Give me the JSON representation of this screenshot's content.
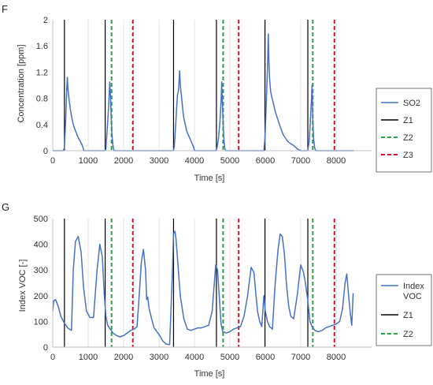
{
  "chart_data": [
    {
      "panel_label": "F",
      "type": "line",
      "xlabel": "Time [s]",
      "ylabel": "Concentration [ppm]",
      "xlim": [
        0,
        9000
      ],
      "ylim": [
        0,
        2
      ],
      "xticks": [
        0,
        1000,
        2000,
        3000,
        4000,
        5000,
        6000,
        7000,
        8000
      ],
      "yticks": [
        0,
        0.4,
        0.8,
        1.2,
        1.6,
        2
      ],
      "ytick_labels": [
        "0",
        "0.4",
        "0.8",
        "1.2",
        "1.6",
        "2"
      ],
      "grid": "vertical",
      "legend_position": "right",
      "series": [
        {
          "name": "SO2",
          "color": "#4472C4",
          "x": [
            0,
            300,
            330,
            360,
            390,
            410,
            430,
            460,
            500,
            540,
            580,
            620,
            660,
            700,
            740,
            780,
            820,
            850,
            880,
            1100,
            1460,
            1500,
            1540,
            1580,
            1610,
            1630,
            1650,
            1670,
            1700,
            1730,
            1760,
            2000,
            3000,
            3400,
            3430,
            3460,
            3490,
            3520,
            3550,
            3580,
            3610,
            3640,
            3670,
            3700,
            3740,
            3780,
            3820,
            3860,
            3900,
            3940,
            3980,
            4000,
            4300,
            4600,
            4640,
            4680,
            4720,
            4750,
            4770,
            4790,
            4810,
            4830,
            4850,
            4880,
            5000,
            5700,
            5960,
            5990,
            6020,
            6050,
            6070,
            6085,
            6100,
            6120,
            6150,
            6190,
            6230,
            6270,
            6310,
            6350,
            6400,
            6450,
            6500,
            6560,
            6620,
            6680,
            6740,
            6800,
            6860,
            6920,
            7000,
            7150,
            7200,
            7240,
            7270,
            7300,
            7320,
            7340,
            7360,
            7390,
            7420,
            8000,
            8500
          ],
          "y": [
            0,
            0,
            0.05,
            0.4,
            0.85,
            1.12,
            0.95,
            0.78,
            0.62,
            0.5,
            0.4,
            0.33,
            0.28,
            0.22,
            0.18,
            0.14,
            0.1,
            0.05,
            0,
            0,
            0,
            0.02,
            0.35,
            0.7,
            1.05,
            0.85,
            0.5,
            0.25,
            0.08,
            0,
            0,
            0,
            0,
            0,
            0.05,
            0.3,
            0.6,
            0.85,
            0.92,
            1.22,
            0.95,
            0.8,
            0.62,
            0.5,
            0.4,
            0.3,
            0.25,
            0.2,
            0.15,
            0.1,
            0.05,
            0,
            0,
            0,
            0.05,
            0.2,
            0.45,
            0.75,
            1.05,
            0.7,
            0.4,
            0.18,
            0.05,
            0,
            0,
            0,
            0,
            0.2,
            0.6,
            1.1,
            1.4,
            1.78,
            1.4,
            1.1,
            0.9,
            0.8,
            0.72,
            0.62,
            0.55,
            0.48,
            0.4,
            0.32,
            0.25,
            0.2,
            0.15,
            0.12,
            0.1,
            0.08,
            0.05,
            0.02,
            0,
            0,
            0,
            0.15,
            0.45,
            0.75,
            1.0,
            0.5,
            0.2,
            0.05,
            0,
            0,
            0
          ]
        }
      ],
      "vlines": [
        {
          "name": "Z1",
          "color": "#000000",
          "dash": "solid",
          "x": [
            330,
            1480,
            3410,
            4620,
            5990,
            7200
          ]
        },
        {
          "name": "Z2",
          "color": "#2E9E4A",
          "dash": "dashed",
          "x": [
            1660,
            4810,
            7340
          ]
        },
        {
          "name": "Z3",
          "color": "#D0112B",
          "dash": "dashed",
          "x": [
            2260,
            5250,
            7950
          ]
        }
      ],
      "legend": [
        {
          "name": "SO2",
          "color": "#4472C4",
          "dash": "solid"
        },
        {
          "name": "Z1",
          "color": "#000000",
          "dash": "solid"
        },
        {
          "name": "Z2",
          "color": "#2E9E4A",
          "dash": "dashed"
        },
        {
          "name": "Z3",
          "color": "#D0112B",
          "dash": "dashed"
        }
      ]
    },
    {
      "panel_label": "G",
      "type": "line",
      "xlabel": "Time [s]",
      "ylabel": "Index VOC [-]",
      "xlim": [
        0,
        9000
      ],
      "ylim": [
        0,
        500
      ],
      "xticks": [
        0,
        1000,
        2000,
        3000,
        4000,
        5000,
        6000,
        7000,
        8000
      ],
      "yticks": [
        0,
        100,
        200,
        300,
        400,
        500
      ],
      "ytick_labels": [
        "0",
        "100",
        "200",
        "300",
        "400",
        "500"
      ],
      "grid": "vertical",
      "legend_position": "right",
      "series": [
        {
          "name": "Index VOC",
          "color": "#4472C4",
          "x": [
            0,
            30,
            80,
            150,
            230,
            320,
            420,
            530,
            580,
            640,
            720,
            800,
            870,
            950,
            1050,
            1150,
            1250,
            1330,
            1400,
            1450,
            1500,
            1550,
            1620,
            1700,
            1800,
            1900,
            2000,
            2100,
            2200,
            2300,
            2380,
            2440,
            2500,
            2560,
            2620,
            2650,
            2680,
            2720,
            2790,
            2860,
            2940,
            3020,
            3100,
            3200,
            3300,
            3380,
            3410,
            3450,
            3480,
            3540,
            3600,
            3700,
            3800,
            3900,
            4000,
            4100,
            4200,
            4300,
            4400,
            4500,
            4600,
            4650,
            4700,
            4750,
            4800,
            4900,
            5000,
            5100,
            5200,
            5300,
            5400,
            5500,
            5600,
            5680,
            5730,
            5780,
            5840,
            5900,
            5960,
            6000,
            6060,
            6120,
            6200,
            6280,
            6360,
            6420,
            6480,
            6540,
            6600,
            6660,
            6720,
            6800,
            6900,
            7000,
            7080,
            7130,
            7200,
            7260,
            7320,
            7400,
            7500,
            7600,
            7700,
            7800,
            7900,
            8000,
            8100,
            8180,
            8250,
            8300,
            8350,
            8400,
            8440,
            8480
          ],
          "y": [
            140,
            180,
            185,
            160,
            120,
            95,
            75,
            65,
            300,
            410,
            430,
            370,
            230,
            140,
            115,
            115,
            300,
            400,
            350,
            210,
            120,
            85,
            70,
            55,
            45,
            40,
            45,
            55,
            65,
            70,
            80,
            200,
            330,
            380,
            300,
            185,
            195,
            150,
            110,
            75,
            60,
            45,
            25,
            12,
            10,
            300,
            440,
            450,
            420,
            310,
            200,
            110,
            70,
            65,
            70,
            75,
            75,
            80,
            85,
            140,
            320,
            300,
            200,
            90,
            60,
            55,
            60,
            70,
            75,
            80,
            120,
            200,
            310,
            290,
            210,
            140,
            100,
            80,
            200,
            140,
            100,
            80,
            70,
            250,
            380,
            440,
            430,
            360,
            240,
            160,
            120,
            110,
            200,
            320,
            290,
            250,
            180,
            100,
            80,
            65,
            60,
            65,
            75,
            80,
            85,
            90,
            100,
            150,
            250,
            285,
            200,
            130,
            85,
            210
          ]
        }
      ],
      "vlines": [
        {
          "name": "Z1",
          "color": "#000000",
          "dash": "solid",
          "x": [
            330,
            1480,
            3410,
            4620,
            5990,
            7200
          ]
        },
        {
          "name": "Z2",
          "color": "#2E9E4A",
          "dash": "dashed",
          "x": [
            1660,
            4810,
            7340
          ]
        },
        {
          "name": "Z3",
          "color": "#D0112B",
          "dash": "dashed",
          "x": [
            2260,
            5250,
            7950
          ]
        }
      ],
      "legend": [
        {
          "name": "Index VOC",
          "color": "#4472C4",
          "dash": "solid"
        },
        {
          "name": "Z1",
          "color": "#000000",
          "dash": "solid"
        },
        {
          "name": "Z2",
          "color": "#2E9E4A",
          "dash": "dashed"
        }
      ]
    }
  ]
}
